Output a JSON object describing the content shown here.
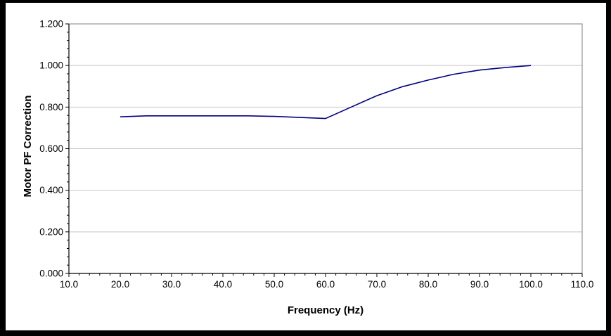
{
  "window": {
    "background": "#ffffff",
    "frame_color": "#000000"
  },
  "chart_data": {
    "type": "line",
    "title": "",
    "xlabel": "Frequency (Hz)",
    "ylabel": "Motor PF Correction",
    "x": [
      20,
      25,
      30,
      35,
      40,
      45,
      50,
      55,
      60,
      65,
      70,
      75,
      80,
      85,
      90,
      95,
      100
    ],
    "series": [
      {
        "name": "Motor PF Correction",
        "values": [
          0.753,
          0.758,
          0.758,
          0.758,
          0.758,
          0.758,
          0.755,
          0.75,
          0.745,
          0.8,
          0.855,
          0.898,
          0.93,
          0.958,
          0.978,
          0.99,
          1.0
        ]
      }
    ],
    "xlim": [
      10,
      110
    ],
    "ylim": [
      0,
      1.2
    ],
    "x_ticks": {
      "values": [
        10,
        20,
        30,
        40,
        50,
        60,
        70,
        80,
        90,
        100,
        110
      ],
      "labels": [
        "10.0",
        "20.0",
        "30.0",
        "40.0",
        "50.0",
        "60.0",
        "70.0",
        "80.0",
        "90.0",
        "100.0",
        "110.0"
      ],
      "minor_step": 2
    },
    "y_ticks": {
      "values": [
        0,
        0.2,
        0.4,
        0.6,
        0.8,
        1.0,
        1.2
      ],
      "labels": [
        "0.000",
        "0.200",
        "0.400",
        "0.600",
        "0.800",
        "1.000",
        "1.200"
      ],
      "minor_step": 0.04
    },
    "grid": "horizontal-major-only",
    "legend": "none",
    "colors": {
      "line": "#000080",
      "gridline": "#c6c6c6",
      "plot_border": "#808080",
      "axis": "#000000",
      "text": "#000000",
      "plot_background": "#ffffff"
    }
  }
}
